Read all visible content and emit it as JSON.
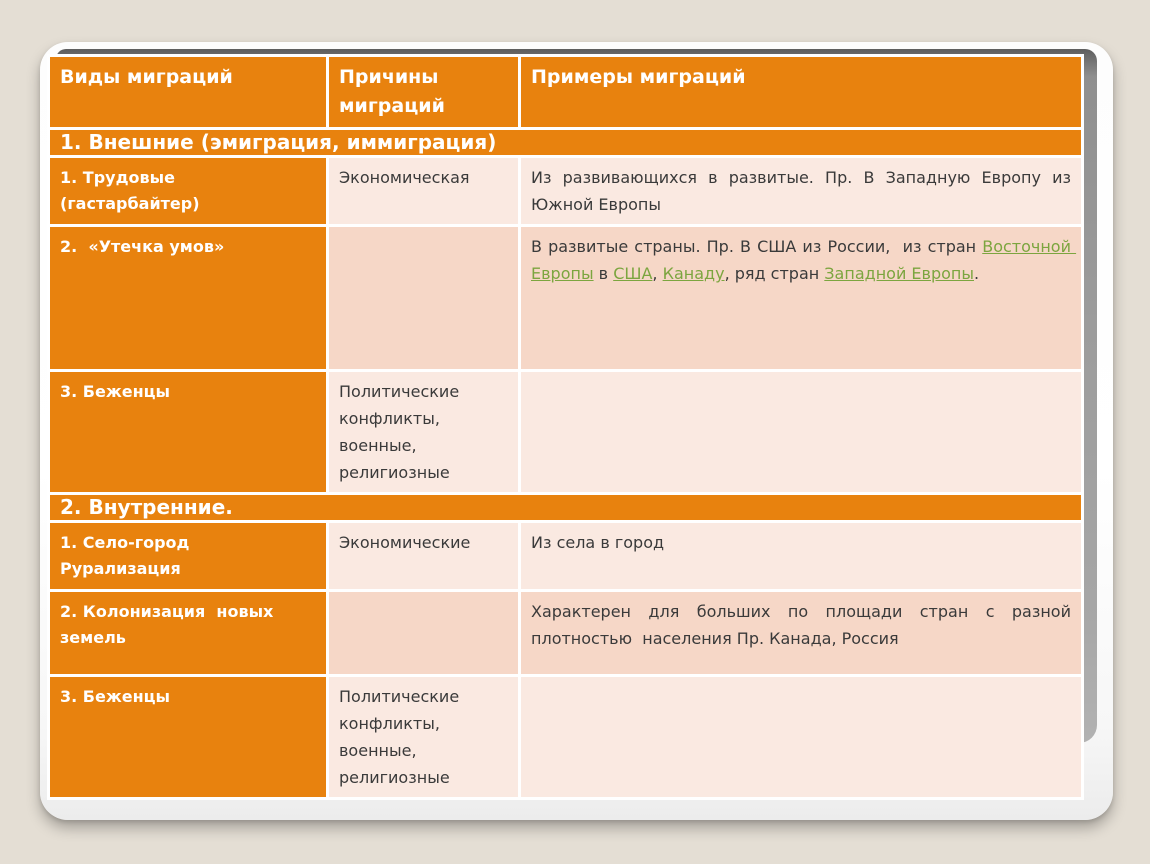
{
  "theme": {
    "bg": "#E4DED4",
    "orange": "#E8820E",
    "row-light": "#FAE9E1",
    "row-dark": "#F6D7C7",
    "text-dark": "#3A3A3A",
    "link-green": "#7CA53F",
    "gray-edge": "#9C9C9C",
    "card": "#FFFFFF"
  },
  "table": {
    "columns": [
      "Виды миграций",
      "Причины\nмиграций",
      "Примеры миграций"
    ],
    "section1": {
      "title": "1. Внешние (эмиграция, иммиграция)",
      "rows": [
        {
          "type": "1. Трудовые (гастарбайтер)",
          "cause": "Экономическая",
          "example": "Из развивающихся в развитые. Пр. В Западную Европу из Южной Европы"
        },
        {
          "type": "2.  «Утечка умов»",
          "cause": "",
          "example_rich": [
            {
              "t": "В развитые страны. Пр. В США из России,  из стран "
            },
            {
              "t": "Восточной Европы",
              "link": true
            },
            {
              "t": " в "
            },
            {
              "t": "США",
              "link": true
            },
            {
              "t": ", "
            },
            {
              "t": "Канаду",
              "link": true
            },
            {
              "t": ", ряд стран "
            },
            {
              "t": "Западной Европы",
              "link": true
            },
            {
              "t": "."
            }
          ]
        },
        {
          "type": "3. Беженцы",
          "cause": "Политические конфликты, военные, религиозные",
          "example": ""
        }
      ]
    },
    "section2": {
      "title": "2. Внутренние.",
      "rows": [
        {
          "type": "1. Село-город\nРурализация",
          "cause": "Экономические",
          "example": "Из села в город"
        },
        {
          "type": "2. Колонизация  новых земель",
          "cause": "",
          "example": "Характерен для больших по площади стран с разной плотностью  населения Пр. Канада, Россия"
        },
        {
          "type": "3. Беженцы",
          "cause": "Политические конфликты, военные, религиозные",
          "example": ""
        }
      ]
    }
  }
}
